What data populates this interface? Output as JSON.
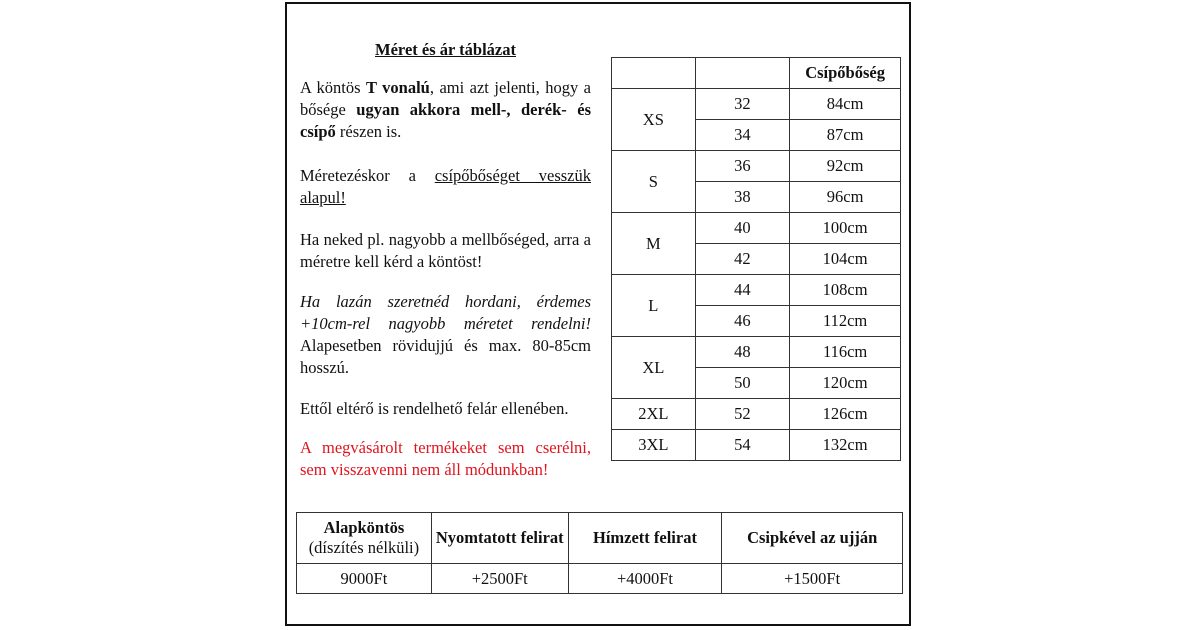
{
  "title": "Méret és ár táblázat",
  "intro": {
    "t1": "A köntös ",
    "b1": "T vonalú",
    "t2": ", ami azt jelenti, hogy a bősége ",
    "b2": "ugyan akkora mell-, derék- és csípő",
    "t3": " részen is."
  },
  "sizing": {
    "t1": "Méretezéskor a ",
    "u1": "csípőbőséget vesszük alapul!"
  },
  "chest_note": "Ha neked pl. nagyobb a mellbőséged, arra a méretre kell kérd a köntöst!",
  "loose_note": {
    "italic": "Ha lazán szeretnéd hordani, érdemes +10cm-rel nagyobb méretet rendelni!",
    "normal": "Alapesetben rövidujjú és max. 80-85cm hosszú."
  },
  "custom_note": "Ettől eltérő is rendelhető felár ellenében.",
  "warning": "A megvásárolt termékeket sem cserélni, sem visszavenni nem áll módunkban!",
  "warning_color": "#e0141e",
  "size_table": {
    "headers": [
      "",
      "",
      "Csípőbőség"
    ],
    "groups": [
      {
        "size": "XS",
        "rows": [
          [
            "32",
            "84cm"
          ],
          [
            "34",
            "87cm"
          ]
        ]
      },
      {
        "size": "S",
        "rows": [
          [
            "36",
            "92cm"
          ],
          [
            "38",
            "96cm"
          ]
        ]
      },
      {
        "size": "M",
        "rows": [
          [
            "40",
            "100cm"
          ],
          [
            "42",
            "104cm"
          ]
        ]
      },
      {
        "size": "L",
        "rows": [
          [
            "44",
            "108cm"
          ],
          [
            "46",
            "112cm"
          ]
        ]
      },
      {
        "size": "XL",
        "rows": [
          [
            "48",
            "116cm"
          ],
          [
            "50",
            "120cm"
          ]
        ]
      },
      {
        "size": "2XL",
        "rows": [
          [
            "52",
            "126cm"
          ]
        ]
      },
      {
        "size": "3XL",
        "rows": [
          [
            "54",
            "132cm"
          ]
        ]
      }
    ]
  },
  "price_table": {
    "headers": [
      {
        "bold": "Alapköntös",
        "sub": "(díszítés nélküli)"
      },
      {
        "bold": "Nyomtatott felirat",
        "sub": ""
      },
      {
        "bold": "Hímzett felirat",
        "sub": ""
      },
      {
        "bold": "Csipkével az ujján",
        "sub": ""
      }
    ],
    "prices": [
      "9000Ft",
      "+2500Ft",
      "+4000Ft",
      "+1500Ft"
    ]
  }
}
